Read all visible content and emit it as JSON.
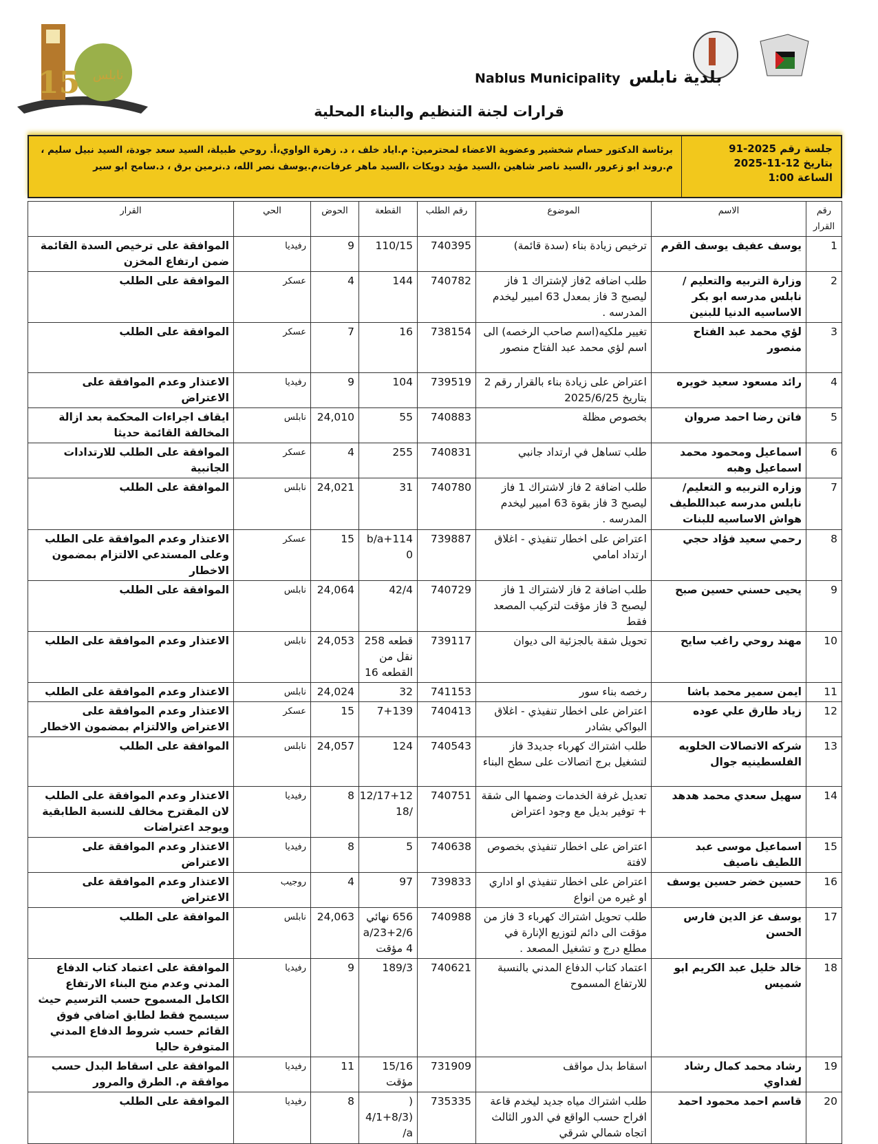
{
  "header": {
    "municipality_en": "Nablus Municipality",
    "municipality_ar": "بلدية نابلس",
    "logo_left_text": "نابلس 150",
    "title": "قرارات لجنة التنظيم والبناء المحلية"
  },
  "session": {
    "number": "جلسة رقم 2025-91",
    "date": "بتاريخ 12-11-2025",
    "time": "الساعة 1:00",
    "members": "برئاسة الدكتور حسام شخشير وعضوية الاعضاء لمحترمين: م.اياد خلف ، د. زهرة الواوي،أ. روحي طبيلة، السيد سعد جودة، السيد نبيل سليم ، م.روند ابو زعرور ،السيد ناصر شاهين ،السيد مؤيد دويكات ،السيد ماهر عرفات،م.يوسف نصر الله، د.نرمين برق ، د.سامح ابو سير"
  },
  "table": {
    "columns": [
      "رقم القرار",
      "الاسم",
      "الموضوع",
      "رقم الطلب",
      "القطعة",
      "الحوض",
      "الحي",
      "القرار"
    ],
    "rows": [
      {
        "no": "1",
        "name": "يوسف عفيف يوسف القرم",
        "subject": "ترخيص زيادة بناء (سدة قائمة)",
        "request": "740395",
        "plot": "110/15",
        "basin": "9",
        "district": "رفيديا",
        "decision": "الموافقة على ترخيص السدة القائمة ضمن ارتفاع المخزن"
      },
      {
        "no": "2",
        "name": "وزارة التربيه والتعليم /نابلس مدرسه ابو بكر الاساسيه الدنيا للبنين",
        "subject": "طلب اضافه 2فاز لإشتراك 1 فاز ليصبح 3 فاز بمعدل 63 امبير ليخدم المدرسه .",
        "request": "740782",
        "plot": "144",
        "basin": "4",
        "district": "عسكر",
        "decision": "الموافقة على الطلب"
      },
      {
        "no": "3",
        "name": "لؤي محمد عبد الفتاح منصور",
        "subject": "تغيير ملكيه(اسم صاحب الرخصه) الى اسم لؤي محمد عبد الفتاح منصور",
        "request": "738154",
        "plot": "16",
        "basin": "7",
        "district": "عسكر",
        "decision": "الموافقة على الطلب"
      },
      {
        "no": "4",
        "name": "رائد مسعود سعيد خويره",
        "subject": "اعتراض على زيادة بناء بالقرار رقم 2 بتاريخ 2025/6/25",
        "request": "739519",
        "plot": "104",
        "basin": "9",
        "district": "رفيديا",
        "decision": "الاعتذار وعدم الموافقة على الاعتراض"
      },
      {
        "no": "5",
        "name": "فاتن رضا احمد صروان",
        "subject": "بخصوص مظلة",
        "request": "740883",
        "plot": "55",
        "basin": "24,010",
        "district": "نابلس",
        "decision": "ايقاف اجراءات المحكمة بعد ازالة المخالفة القائمة حديثا"
      },
      {
        "no": "6",
        "name": "اسماعيل ومحمود محمد اسماعيل وهبه",
        "subject": "طلب تساهل في ارتداد جانبي",
        "request": "740831",
        "plot": "255",
        "basin": "4",
        "district": "عسكر",
        "decision": "الموافقة على الطلب للارتدادات الجانبية"
      },
      {
        "no": "7",
        "name": "وزاره التربيه و التعليم/نابلس مدرسه عبداللطيف هواش الاساسيه للبنات",
        "subject": "طلب اضافة 2 فاز لاشتراك 1 فاز ليصبح 3 فاز بقوة 63 امبير ليخدم المدرسه .",
        "request": "740780",
        "plot": "31",
        "basin": "24,021",
        "district": "نابلس",
        "decision": "الموافقة على الطلب"
      },
      {
        "no": "8",
        "name": "رحمي سعيد فؤاد حجي",
        "subject": "اعتراض على اخطار تنفيذي - اغلاق ارتداد امامي",
        "request": "739887",
        "plot": "b/a+114 0",
        "basin": "15",
        "district": "عسكر",
        "decision": "الاعتذار وعدم الموافقة على الطلب وعلى المستدعي الالتزام بمضمون الاخطار"
      },
      {
        "no": "9",
        "name": "يحيى حسني حسين صبح",
        "subject": "طلب اضافة 2 فاز لاشتراك 1 فاز ليصبح 3 فاز مؤقت لتركيب المصعد فقط",
        "request": "740729",
        "plot": "42/4",
        "basin": "24,064",
        "district": "نابلس",
        "decision": "الموافقة على الطلب"
      },
      {
        "no": "10",
        "name": "مهند روحي راغب سايح",
        "subject": "تحويل شقة بالجزئية الى ديوان",
        "request": "739117",
        "plot": "قطعه 258 نقل من القطعه 16",
        "basin": "24,053",
        "district": "نابلس",
        "decision": "الاعتذار وعدم الموافقة على الطلب"
      },
      {
        "no": "11",
        "name": "ايمن سمير محمد باشا",
        "subject": "رخصه بناء سور",
        "request": "741153",
        "plot": "32",
        "basin": "24,024",
        "district": "نابلس",
        "decision": "الاعتذار وعدم الموافقة على الطلب"
      },
      {
        "no": "12",
        "name": "زياد طارق علي عوده",
        "subject": "اعتراض على اخطار تنفيذي - اغلاق البواكي بشادر",
        "request": "740413",
        "plot": "7+139",
        "basin": "15",
        "district": "عسكر",
        "decision": "الاعتذار وعدم الموافقة على الاعتراض والالتزام بمضمون الاخطار"
      },
      {
        "no": "13",
        "name": "شركه الاتصالات الخلويه الفلسطينيه جوال",
        "subject": "طلب اشتراك كهرباء جديد3 فاز لتشغيل برج اتصالات على سطح البناء",
        "request": "740543",
        "plot": "124",
        "basin": "24,057",
        "district": "نابلس",
        "decision": "الموافقة على الطلب"
      },
      {
        "no": "14",
        "name": "سهيل سعدي محمد هدهد",
        "subject": "تعديل غرفة الخدمات وضمها الى شقة + توفير بديل مع وجود اعتراض",
        "request": "740751",
        "plot": "12/17+12 /18",
        "basin": "8",
        "district": "رفيديا",
        "decision": "الاعتذار وعدم الموافقة على الطلب لان المقترح مخالف للنسبة الطابقية ويوجد اعتراضات"
      },
      {
        "no": "15",
        "name": "اسماعيل موسى عبد اللطيف ناصيف",
        "subject": "اعتراض على اخطار تنفيذي بخصوص لافتة",
        "request": "740638",
        "plot": "5",
        "basin": "8",
        "district": "رفيديا",
        "decision": "الاعتذار وعدم الموافقة على الاعتراض"
      },
      {
        "no": "16",
        "name": "حسين خضر حسين يوسف",
        "subject": "اعتراض على اخطار تنفيذي او اداري او غيره من انواع",
        "request": "739833",
        "plot": "97",
        "basin": "4",
        "district": "روجيب",
        "decision": "الاعتذار وعدم الموافقة على الاعتراض"
      },
      {
        "no": "17",
        "name": "يوسف عز الدين فارس الحسن",
        "subject": "طلب تحويل اشتراك كهرباء 3 فاز من مؤقت الى دائم لتوزيع الإنارة في مطلع درج و تشغيل المصعد .",
        "request": "740988",
        "plot": "656 نهائي a/23+2/6 4 مؤقت",
        "basin": "24,063",
        "district": "نابلس",
        "decision": "الموافقة على الطلب"
      },
      {
        "no": "18",
        "name": "خالد خليل عبد الكريم ابو شميس",
        "subject": "اعتماد كتاب الدفاع المدني بالنسبة للارتفاع المسموح",
        "request": "740621",
        "plot": "189/3",
        "basin": "9",
        "district": "رفيديا",
        "decision": "الموافقة على اعتماد كتاب الدفاع المدني وعدم منح البناء الارتفاع الكامل المسموح حسب الترسيم حيث سيسمح فقط لطابق اضافي فوق القائم حسب شروط الدفاع المدني المتوفرة حاليا"
      },
      {
        "no": "19",
        "name": "رشاد محمد كمال رشاد لفداوي",
        "subject": "اسقاط بدل مواقف",
        "request": "731909",
        "plot": "15/16 مؤقت",
        "basin": "11",
        "district": "رفيديا",
        "decision": "الموافقة على اسقاط البدل حسب موافقة م. الطرق والمرور"
      },
      {
        "no": "20",
        "name": "قاسم احمد محمود احمد",
        "subject": "طلب اشتراك مياه جديد ليخدم قاعة افراح حسب الواقع في الدور الثالث اتجاه شمالي شرقي",
        "request": "735335",
        "plot": "( (4/1+8/3 a/",
        "basin": "8",
        "district": "رفيديا",
        "decision": "الموافقة على الطلب"
      }
    ]
  }
}
